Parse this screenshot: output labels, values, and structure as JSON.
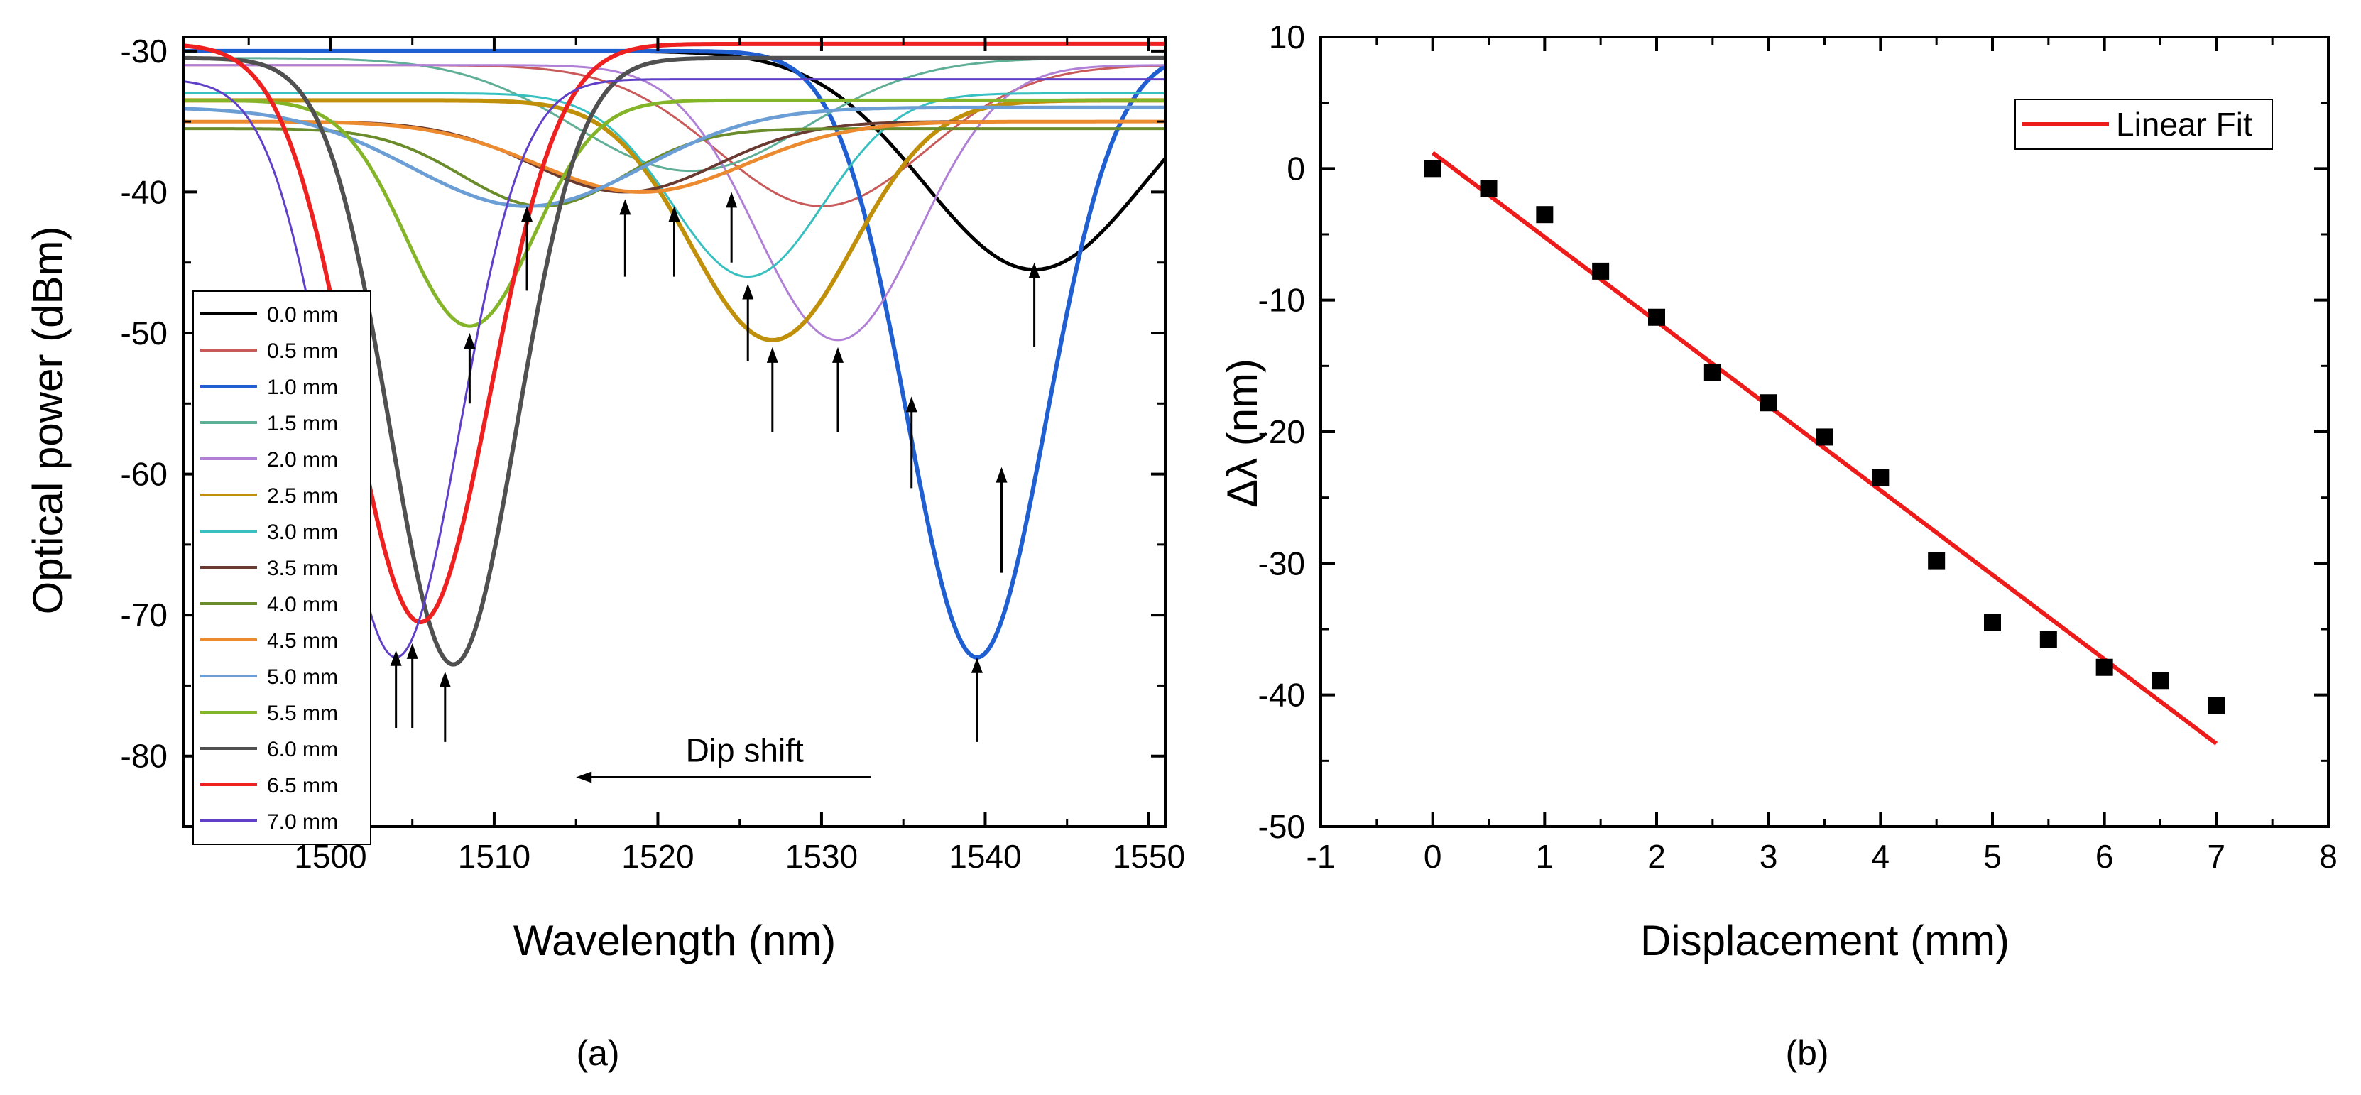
{
  "chart_data": [
    {
      "type": "line",
      "panel_label": "(a)",
      "xlabel": "Wavelength (nm)",
      "ylabel": "Optical power (dBm)",
      "xlim": [
        1491,
        1551
      ],
      "ylim": [
        -85,
        -29
      ],
      "xticks": [
        1500,
        1510,
        1520,
        1530,
        1540,
        1550
      ],
      "yticks": [
        -30,
        -40,
        -50,
        -60,
        -70,
        -80
      ],
      "annotation": "Dip shift",
      "legend_placement": "lower-left",
      "series": [
        {
          "name": "0.0 mm",
          "color": "#000000",
          "base": -30,
          "depth": 15.5,
          "center": 1543,
          "width": 9.5,
          "lw": 5
        },
        {
          "name": "0.5 mm",
          "color": "#c95a5a",
          "base": -31,
          "depth": 10,
          "center": 1530,
          "width": 9,
          "lw": 3
        },
        {
          "name": "1.0 mm",
          "color": "#1f5fd1",
          "base": -30,
          "depth": 43,
          "center": 1539.5,
          "width": 6,
          "lw": 6
        },
        {
          "name": "1.5 mm",
          "color": "#5fae96",
          "base": -30.5,
          "depth": 8,
          "center": 1522,
          "width": 10,
          "lw": 3
        },
        {
          "name": "2.0 mm",
          "color": "#b07fd6",
          "base": -31,
          "depth": 19.5,
          "center": 1531,
          "width": 7,
          "lw": 3
        },
        {
          "name": "2.5 mm",
          "color": "#c0900a",
          "base": -33.5,
          "depth": 17,
          "center": 1527,
          "width": 7,
          "lw": 6
        },
        {
          "name": "3.0 mm",
          "color": "#38bfbf",
          "base": -33,
          "depth": 13,
          "center": 1525.5,
          "width": 6.5,
          "lw": 3
        },
        {
          "name": "3.5 mm",
          "color": "#6a3a30",
          "base": -35,
          "depth": 5,
          "center": 1518,
          "width": 8,
          "lw": 4
        },
        {
          "name": "4.0 mm",
          "color": "#6a8c2a",
          "base": -35.5,
          "depth": 5.5,
          "center": 1513,
          "width": 7,
          "lw": 4
        },
        {
          "name": "4.5 mm",
          "color": "#ec8a30",
          "base": -35,
          "depth": 5,
          "center": 1519,
          "width": 9,
          "lw": 5
        },
        {
          "name": "5.0 mm",
          "color": "#6a9ed4",
          "base": -34,
          "depth": 7,
          "center": 1512,
          "width": 10,
          "lw": 5
        },
        {
          "name": "5.5 mm",
          "color": "#84b428",
          "base": -33.5,
          "depth": 16,
          "center": 1508.5,
          "width": 5.5,
          "lw": 5
        },
        {
          "name": "6.0 mm",
          "color": "#505050",
          "base": -30.5,
          "depth": 43,
          "center": 1507.5,
          "width": 5.5,
          "lw": 6
        },
        {
          "name": "6.5 mm",
          "color": "#ee2020",
          "base": -29.5,
          "depth": 41,
          "center": 1505.5,
          "width": 6,
          "lw": 6
        },
        {
          "name": "7.0 mm",
          "color": "#6040c8",
          "base": -32,
          "depth": 41,
          "center": 1504,
          "width": 5.5,
          "lw": 3
        }
      ],
      "dip_arrows": [
        {
          "x": 1543,
          "y_tip": -45,
          "y_tail": -51
        },
        {
          "x": 1541,
          "y_tip": -59.5,
          "y_tail": -67
        },
        {
          "x": 1539.5,
          "y_tip": -73,
          "y_tail": -79
        },
        {
          "x": 1535.5,
          "y_tip": -54.5,
          "y_tail": -61
        },
        {
          "x": 1531,
          "y_tip": -51,
          "y_tail": -57
        },
        {
          "x": 1527,
          "y_tip": -51,
          "y_tail": -57
        },
        {
          "x": 1525.5,
          "y_tip": -46.5,
          "y_tail": -52
        },
        {
          "x": 1524.5,
          "y_tip": -40,
          "y_tail": -45
        },
        {
          "x": 1521,
          "y_tip": -41,
          "y_tail": -46
        },
        {
          "x": 1518,
          "y_tip": -40.5,
          "y_tail": -46
        },
        {
          "x": 1512,
          "y_tip": -41,
          "y_tail": -47
        },
        {
          "x": 1508.5,
          "y_tip": -50,
          "y_tail": -55
        },
        {
          "x": 1507,
          "y_tip": -74,
          "y_tail": -79
        },
        {
          "x": 1505,
          "y_tip": -72,
          "y_tail": -78
        },
        {
          "x": 1504,
          "y_tip": -72.5,
          "y_tail": -78
        }
      ],
      "shift_arrow": {
        "x_from": 1533,
        "x_to": 1515,
        "y": -81.5
      }
    },
    {
      "type": "scatter",
      "panel_label": "(b)",
      "xlabel": "Displacement (mm)",
      "ylabel": "Δλ (nm)",
      "xlim": [
        -1,
        8
      ],
      "ylim": [
        -50,
        10
      ],
      "xticks": [
        -1,
        0,
        1,
        2,
        3,
        4,
        5,
        6,
        7,
        8
      ],
      "yticks": [
        10,
        0,
        -10,
        -20,
        -30,
        -40,
        -50
      ],
      "x": [
        0,
        0.5,
        1,
        1.5,
        2,
        2.5,
        3,
        3.5,
        4,
        4.5,
        5,
        5.5,
        6,
        6.5,
        7
      ],
      "y": [
        0,
        -1.5,
        -3.5,
        -7.8,
        -11.3,
        -15.5,
        -17.8,
        -20.4,
        -23.5,
        -29.8,
        -34.5,
        -35.8,
        -37.9,
        -38.9,
        -40.8
      ],
      "fit": {
        "name": "Linear Fit",
        "color": "#ee1b1b",
        "x": [
          0,
          7
        ],
        "y": [
          1.2,
          -43.7
        ]
      },
      "legend_placement": "top-right"
    }
  ]
}
